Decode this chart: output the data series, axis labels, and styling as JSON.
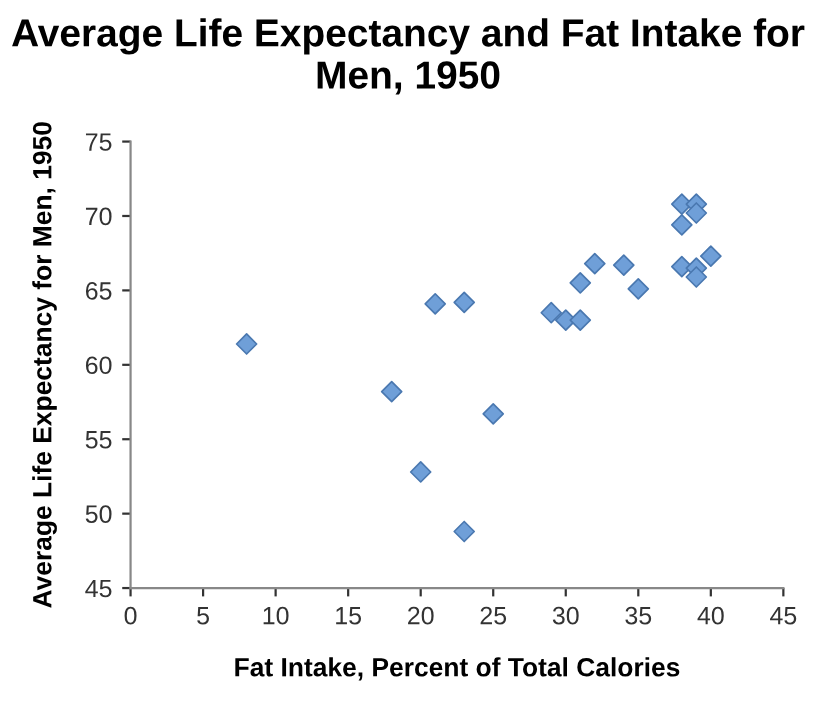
{
  "chart_data": {
    "type": "scatter",
    "title": "Average Life Expectancy and Fat Intake for Men, 1950",
    "xlabel": "Fat Intake, Percent of Total Calories",
    "ylabel": "Average Life Expectancy for Men, 1950",
    "x": [
      8,
      21,
      23,
      18,
      20,
      23,
      25,
      29,
      30,
      31,
      31,
      32,
      34,
      35,
      38,
      39,
      38,
      39,
      38,
      39,
      39,
      40
    ],
    "values": [
      61.4,
      64.1,
      64.2,
      58.2,
      52.8,
      48.8,
      56.7,
      63.5,
      63.0,
      63.0,
      65.5,
      66.8,
      66.7,
      65.1,
      70.8,
      70.8,
      69.4,
      70.2,
      66.6,
      66.5,
      65.9,
      67.3
    ],
    "color": "#6f9fd8",
    "marker": "diamond",
    "xlim": [
      0,
      45
    ],
    "xticks": [
      0,
      5,
      10,
      15,
      20,
      25,
      30,
      35,
      40,
      45
    ],
    "ylim": [
      45,
      75
    ],
    "yticks": [
      45,
      50,
      55,
      60,
      65,
      70,
      75
    ],
    "grid": false,
    "legend": false
  }
}
